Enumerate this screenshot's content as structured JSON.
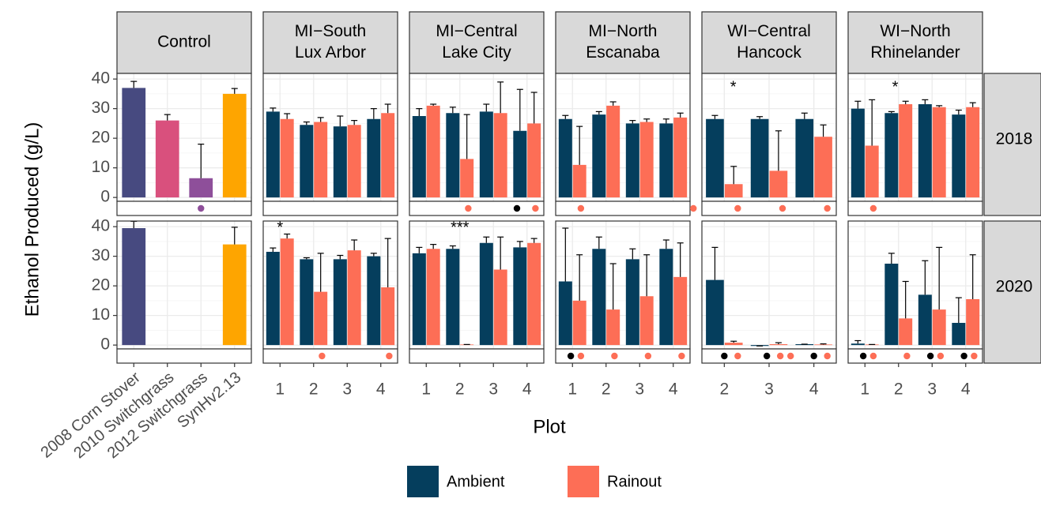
{
  "chart_data": {
    "type": "bar",
    "ylabel": "Ethanol Produced (g/L)",
    "xlabel": "Plot",
    "ylim": [
      -1.3,
      41.9
    ],
    "yticks": [
      0,
      10,
      20,
      30,
      40
    ],
    "grid": true,
    "legend": "bottom",
    "series": [
      {
        "name": "Ambient",
        "color": "#053e5d"
      },
      {
        "name": "Rainout",
        "color": "#fd6e56"
      }
    ],
    "rows": [
      "2018",
      "2020"
    ],
    "columns": [
      {
        "title": [
          "Control"
        ],
        "categories": [
          "2008 Corn Stover",
          "2010 Switchgrass",
          "2012 Switchgrass",
          "SynHv2.13"
        ],
        "colors": [
          "#474a80",
          "#d9507d",
          "#8e4f9a",
          "#fea500"
        ],
        "panels": [
          {
            "values": [
              [
                37,
                26,
                6.5,
                35
              ]
            ],
            "errors": [
              [
                2.2,
                2,
                11.5,
                1.8
              ]
            ],
            "markers": [
              {
                "x": "2012 Switchgrass",
                "color": "#8e4f9a"
              }
            ]
          },
          {
            "values": [
              [
                39.5,
                null,
                null,
                34
              ]
            ],
            "errors": [
              [
                2.3,
                null,
                null,
                5.8
              ]
            ],
            "markers": []
          }
        ]
      },
      {
        "title": [
          "MI−South",
          "Lux Arbor"
        ],
        "categories": [
          1,
          2,
          3,
          4
        ],
        "panels": [
          {
            "values": [
              [
                29,
                24.5,
                24,
                26.5
              ],
              [
                26.5,
                25.5,
                24.5,
                28.5
              ]
            ],
            "errors": [
              [
                1.2,
                1,
                3.5,
                3.5
              ],
              [
                1.8,
                1.5,
                1.5,
                3
              ]
            ],
            "markers": []
          },
          {
            "values": [
              [
                31.5,
                29,
                29,
                30
              ],
              [
                36,
                18,
                32,
                19.5
              ]
            ],
            "errors": [
              [
                1.3,
                0.5,
                1.3,
                1
              ],
              [
                1.5,
                13,
                3.5,
                16.5
              ]
            ],
            "markers": [
              {
                "x": 2.25,
                "color": "#fd6e56"
              },
              {
                "x": 4.25,
                "color": "#fd6e56"
              }
            ],
            "annotations": [
              {
                "text": "*",
                "x": 1,
                "y": 39.5
              }
            ]
          }
        ]
      },
      {
        "title": [
          "MI−Central",
          "Lake City"
        ],
        "categories": [
          1,
          2,
          3,
          4
        ],
        "panels": [
          {
            "values": [
              [
                27.5,
                28.5,
                29,
                22.5
              ],
              [
                31,
                13,
                28.5,
                25
              ]
            ],
            "errors": [
              [
                2.5,
                2,
                2.5,
                14
              ],
              [
                0.5,
                15,
                10.5,
                10.5
              ]
            ],
            "markers": [
              {
                "x": 2.25,
                "color": "#fd6e56"
              },
              {
                "x": 3.7,
                "color": "#000000"
              },
              {
                "x": 4.25,
                "color": "#fd6e56"
              }
            ]
          },
          {
            "values": [
              [
                31,
                32.5,
                34.5,
                33
              ],
              [
                32.5,
                0.2,
                25.5,
                34.5
              ]
            ],
            "errors": [
              [
                2,
                1,
                2,
                2
              ],
              [
                1.5,
                0,
                11,
                1.5
              ]
            ],
            "markers": [],
            "annotations": [
              {
                "text": "***",
                "x": 2,
                "y": 39.5
              }
            ]
          }
        ]
      },
      {
        "title": [
          "MI−North",
          "Escanaba"
        ],
        "categories": [
          1,
          2,
          3,
          4
        ],
        "panels": [
          {
            "values": [
              [
                26.5,
                28,
                25,
                25
              ],
              [
                11,
                31,
                25.5,
                27
              ]
            ],
            "errors": [
              [
                1.2,
                1,
                1,
                1.5
              ],
              [
                13,
                1.3,
                1,
                1.5
              ]
            ],
            "markers": [
              {
                "x": 1.25,
                "color": "#fd6e56"
              },
              {
                "x": 4.6,
                "color": "#fd6e56"
              }
            ]
          },
          {
            "values": [
              [
                21.5,
                32.5,
                29,
                32.5
              ],
              [
                15,
                12,
                16.5,
                23
              ]
            ],
            "errors": [
              [
                18,
                4,
                3.5,
                3
              ],
              [
                15.5,
                15.5,
                14,
                11.5
              ]
            ],
            "markers": [
              {
                "x": 0.95,
                "color": "#000000"
              },
              {
                "x": 1.25,
                "color": "#fd6e56"
              },
              {
                "x": 2.25,
                "color": "#fd6e56"
              },
              {
                "x": 3.25,
                "color": "#fd6e56"
              },
              {
                "x": 4.25,
                "color": "#fd6e56"
              }
            ]
          }
        ]
      },
      {
        "title": [
          "WI−Central",
          "Hancock"
        ],
        "categories": [
          2,
          3,
          4
        ],
        "panels": [
          {
            "values": [
              [
                26.5,
                26.5,
                26.5
              ],
              [
                4.5,
                9,
                20.5
              ]
            ],
            "errors": [
              [
                1.2,
                0.8,
                2
              ],
              [
                6,
                13.5,
                4
              ]
            ],
            "markers": [
              {
                "x": 2.3,
                "color": "#fd6e56"
              },
              {
                "x": 3.3,
                "color": "#fd6e56"
              },
              {
                "x": 4.3,
                "color": "#fd6e56"
              }
            ],
            "annotations": [
              {
                "text": "*",
                "x": 2.2,
                "y": 37
              }
            ]
          },
          {
            "values": [
              [
                22,
                -0.3,
                0.3
              ],
              [
                0.8,
                0.3,
                0.2
              ]
            ],
            "errors": [
              [
                11,
                0,
                0
              ],
              [
                0.5,
                0.5,
                0.2
              ]
            ],
            "markers": [
              {
                "x": 2,
                "color": "#000000"
              },
              {
                "x": 2.3,
                "color": "#fd6e56"
              },
              {
                "x": 2.95,
                "color": "#000000"
              },
              {
                "x": 3.25,
                "color": "#fd6e56"
              },
              {
                "x": 3.48,
                "color": "#fd6e56"
              },
              {
                "x": 4,
                "color": "#000000"
              },
              {
                "x": 4.3,
                "color": "#fd6e56"
              }
            ]
          }
        ]
      },
      {
        "title": [
          "WI−North",
          "Rhinelander"
        ],
        "categories": [
          1,
          2,
          3,
          4
        ],
        "panels": [
          {
            "values": [
              [
                30,
                28.5,
                31.5,
                28
              ],
              [
                17.5,
                31.5,
                30.5,
                30.5
              ]
            ],
            "errors": [
              [
                2.5,
                0.5,
                1.5,
                1.5
              ],
              [
                15.5,
                1,
                0.5,
                1.5
              ]
            ],
            "markers": [
              {
                "x": 1.25,
                "color": "#fd6e56"
              }
            ],
            "annotations": [
              {
                "text": "*",
                "x": 1.9,
                "y": 37
              }
            ]
          },
          {
            "values": [
              [
                0.5,
                27.5,
                17,
                7.5
              ],
              [
                0.2,
                9,
                12,
                15.5
              ]
            ],
            "errors": [
              [
                1,
                3.5,
                11.5,
                8.5
              ],
              [
                0,
                12.5,
                21,
                15
              ]
            ],
            "markers": [
              {
                "x": 0.95,
                "color": "#000000"
              },
              {
                "x": 1.25,
                "color": "#fd6e56"
              },
              {
                "x": 2.25,
                "color": "#fd6e56"
              },
              {
                "x": 2.95,
                "color": "#000000"
              },
              {
                "x": 3.25,
                "color": "#fd6e56"
              },
              {
                "x": 3.95,
                "color": "#000000"
              },
              {
                "x": 4.25,
                "color": "#fd6e56"
              }
            ]
          }
        ]
      }
    ]
  }
}
